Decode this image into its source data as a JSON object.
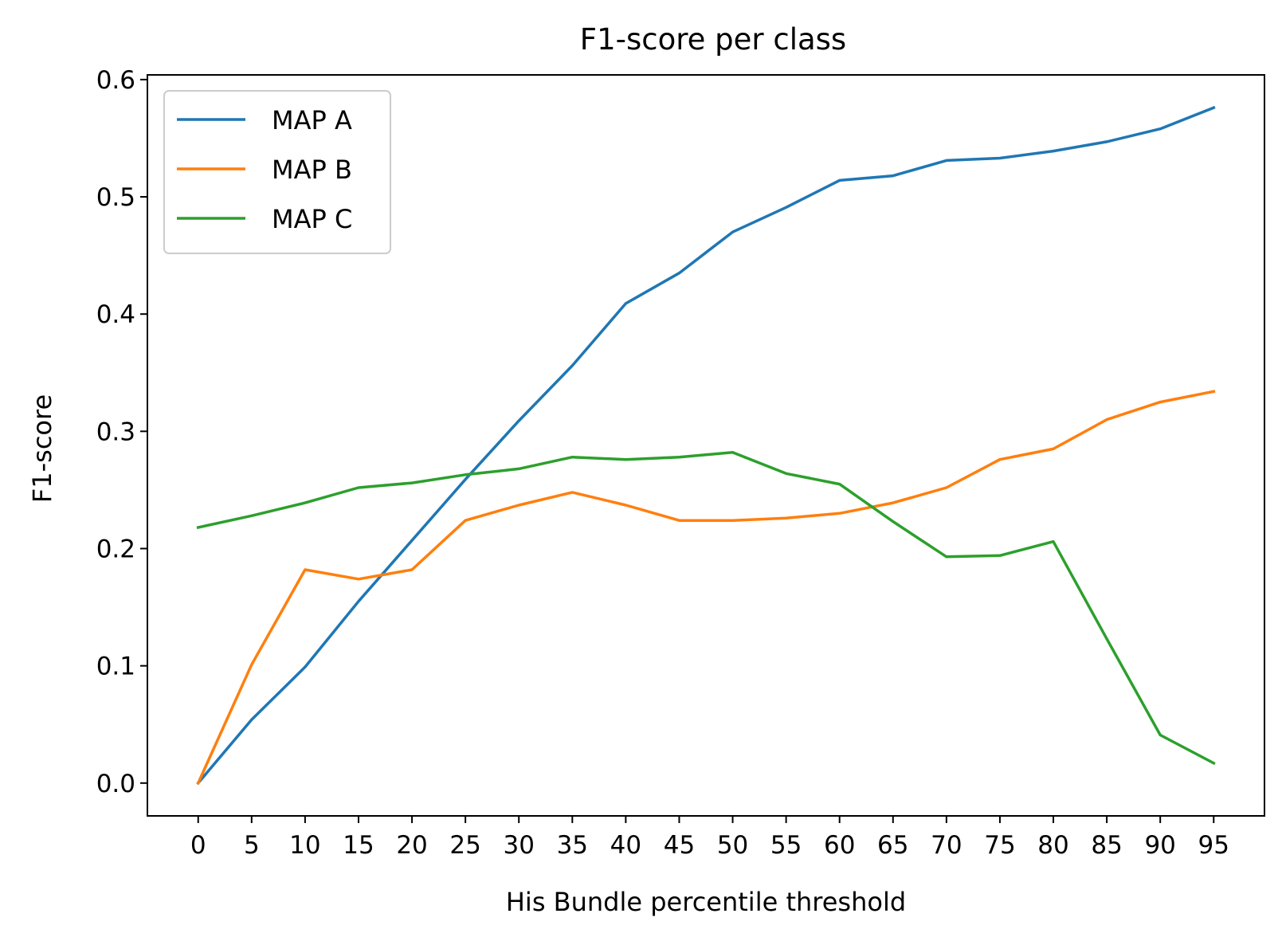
{
  "chart_data": {
    "type": "line",
    "title": "F1-score per class",
    "xlabel": "His Bundle percentile threshold",
    "ylabel": "F1-score",
    "x": [
      0,
      5,
      10,
      15,
      20,
      25,
      30,
      35,
      40,
      45,
      50,
      55,
      60,
      65,
      70,
      75,
      80,
      85,
      90,
      95
    ],
    "xticks": [
      "0",
      "5",
      "10",
      "15",
      "20",
      "25",
      "30",
      "35",
      "40",
      "45",
      "50",
      "55",
      "60",
      "65",
      "70",
      "75",
      "80",
      "85",
      "90",
      "95"
    ],
    "yticks": [
      "0.0",
      "0.1",
      "0.2",
      "0.3",
      "0.4",
      "0.5",
      "0.6"
    ],
    "xlim": [
      -4.75,
      99.75
    ],
    "ylim": [
      -0.028,
      0.604
    ],
    "grid": false,
    "legend_position": "upper-left",
    "series": [
      {
        "name": "MAP A",
        "color": "#1f77b4",
        "values": [
          0.0,
          0.054,
          0.099,
          0.155,
          0.207,
          0.259,
          0.309,
          0.356,
          0.409,
          0.435,
          0.47,
          0.491,
          0.514,
          0.518,
          0.531,
          0.533,
          0.539,
          0.547,
          0.558,
          0.576
        ]
      },
      {
        "name": "MAP B",
        "color": "#ff7f0e",
        "values": [
          0.0,
          0.101,
          0.182,
          0.174,
          0.182,
          0.224,
          0.237,
          0.248,
          0.237,
          0.224,
          0.224,
          0.226,
          0.23,
          0.239,
          0.252,
          0.276,
          0.285,
          0.31,
          0.325,
          0.334
        ]
      },
      {
        "name": "MAP C",
        "color": "#2ca02c",
        "values": [
          0.218,
          0.228,
          0.239,
          0.252,
          0.256,
          0.263,
          0.268,
          0.278,
          0.276,
          0.278,
          0.282,
          0.264,
          0.255,
          0.223,
          0.193,
          0.194,
          0.206,
          0.123,
          0.041,
          0.017
        ]
      }
    ]
  }
}
